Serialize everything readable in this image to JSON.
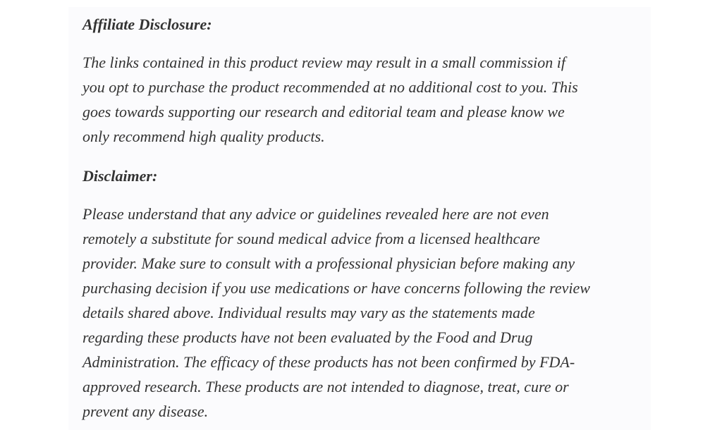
{
  "affiliate": {
    "heading": "Affiliate Disclosure:",
    "lines": [
      "The links contained in this product review may result in a small commission if",
      "you opt to purchase the product recommended at no additional cost to you. This",
      "goes towards supporting our research and editorial team and please know we",
      "only recommend high quality products."
    ]
  },
  "disclaimer": {
    "heading": "Disclaimer:",
    "lines": [
      "Please understand that any advice or guidelines revealed here are not even",
      "remotely a substitute for sound medical advice from a licensed healthcare",
      "provider. Make sure to consult with a professional physician before making any",
      "purchasing decision if you use medications or have concerns following the review",
      "details shared above. Individual results may vary as the statements made",
      "regarding these products have not been evaluated by the Food and Drug",
      "Administration. The efficacy of these products has not been confirmed by FDA-",
      "approved research. These products are not intended to diagnose, treat, cure or",
      "prevent any disease."
    ]
  }
}
